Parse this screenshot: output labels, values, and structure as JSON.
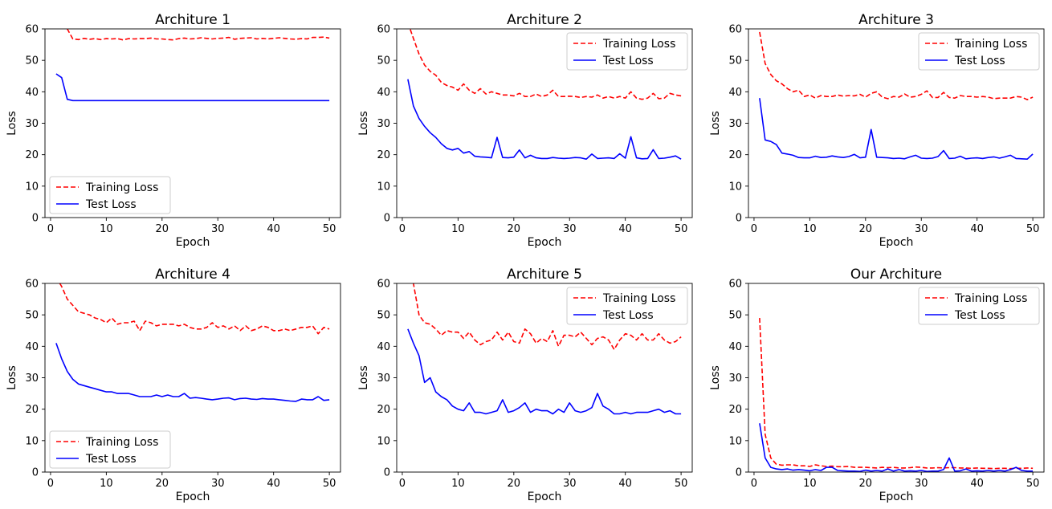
{
  "chart_data": [
    {
      "type": "line",
      "title": "Architure 1",
      "xlabel": "Epoch",
      "ylabel": "Loss",
      "xlim": [
        -1,
        52
      ],
      "ylim": [
        0,
        60
      ],
      "xticks": [
        "0",
        "10",
        "20",
        "30",
        "40",
        "50"
      ],
      "yticks": [
        "0",
        "10",
        "20",
        "30",
        "40",
        "50",
        "60"
      ],
      "legend_position": "lower-left",
      "x": [
        1,
        2,
        3,
        4,
        5,
        6,
        7,
        8,
        9,
        10,
        11,
        12,
        13,
        14,
        15,
        16,
        17,
        18,
        19,
        20,
        21,
        22,
        23,
        24,
        25,
        26,
        27,
        28,
        29,
        30,
        31,
        32,
        33,
        34,
        35,
        36,
        37,
        38,
        39,
        40,
        41,
        42,
        43,
        44,
        45,
        46,
        47,
        48,
        49,
        50
      ],
      "series": [
        {
          "name": "Training Loss",
          "style": "dashed",
          "color": "#ff0000",
          "values": [
            66,
            62,
            60,
            56.8,
            56.6,
            57,
            56.7,
            56.9,
            56.6,
            56.9,
            56.8,
            56.9,
            56.5,
            56.9,
            56.8,
            56.9,
            56.9,
            57.1,
            56.8,
            56.8,
            56.6,
            56.5,
            56.9,
            57.1,
            56.8,
            56.9,
            57.2,
            57.0,
            56.8,
            57.0,
            57.1,
            57.3,
            56.7,
            57.0,
            57.1,
            57.2,
            56.8,
            57.0,
            56.8,
            57.0,
            57.2,
            57.0,
            56.8,
            56.7,
            56.9,
            56.8,
            57.3,
            57.3,
            57.4,
            57.1
          ]
        },
        {
          "name": "Test Loss",
          "style": "solid",
          "color": "#0000ff",
          "values": [
            45.7,
            44.5,
            37.6,
            37.2,
            37.2,
            37.2,
            37.2,
            37.2,
            37.2,
            37.2,
            37.2,
            37.2,
            37.2,
            37.2,
            37.2,
            37.2,
            37.2,
            37.2,
            37.2,
            37.2,
            37.2,
            37.2,
            37.2,
            37.2,
            37.2,
            37.2,
            37.2,
            37.2,
            37.2,
            37.2,
            37.2,
            37.2,
            37.2,
            37.2,
            37.2,
            37.2,
            37.2,
            37.2,
            37.2,
            37.2,
            37.2,
            37.2,
            37.2,
            37.2,
            37.2,
            37.2,
            37.2,
            37.2,
            37.2,
            37.2
          ]
        }
      ]
    },
    {
      "type": "line",
      "title": "Architure 2",
      "xlabel": "Epoch",
      "ylabel": "Loss",
      "xlim": [
        -1,
        52
      ],
      "ylim": [
        0,
        60
      ],
      "xticks": [
        "0",
        "10",
        "20",
        "30",
        "40",
        "50"
      ],
      "yticks": [
        "0",
        "10",
        "20",
        "30",
        "40",
        "50",
        "60"
      ],
      "legend_position": "top-right",
      "x": [
        1,
        2,
        3,
        4,
        5,
        6,
        7,
        8,
        9,
        10,
        11,
        12,
        13,
        14,
        15,
        16,
        17,
        18,
        19,
        20,
        21,
        22,
        23,
        24,
        25,
        26,
        27,
        28,
        29,
        30,
        31,
        32,
        33,
        34,
        35,
        36,
        37,
        38,
        39,
        40,
        41,
        42,
        43,
        44,
        45,
        46,
        47,
        48,
        49,
        50
      ],
      "series": [
        {
          "name": "Training Loss",
          "style": "dashed",
          "color": "#ff0000",
          "values": [
            62,
            57,
            52,
            48.5,
            46.5,
            45.3,
            43,
            42,
            41.5,
            40.5,
            42.5,
            40.5,
            39.5,
            41,
            39.3,
            40,
            39.5,
            39,
            39,
            38.7,
            39.5,
            38.5,
            38.5,
            39.3,
            38.5,
            39,
            40.5,
            38.5,
            38.5,
            38.6,
            38.5,
            38.2,
            38.5,
            38.3,
            39,
            38,
            38.5,
            38,
            38.5,
            38,
            40,
            38,
            37.6,
            38,
            39.5,
            37.8,
            38,
            39.5,
            39,
            38.7
          ]
        },
        {
          "name": "Test Loss",
          "style": "solid",
          "color": "#0000ff",
          "values": [
            44,
            35.5,
            31.5,
            29,
            27,
            25.5,
            23.5,
            22,
            21.5,
            22,
            20.5,
            21,
            19.5,
            19.3,
            19.2,
            19,
            25.5,
            19.1,
            19,
            19.2,
            21.5,
            19,
            19.8,
            19,
            18.8,
            18.8,
            19.1,
            18.9,
            18.8,
            18.9,
            19.1,
            19,
            18.6,
            20.2,
            18.8,
            18.9,
            19,
            18.8,
            20.3,
            18.9,
            25.7,
            19,
            18.7,
            18.8,
            21.6,
            18.8,
            18.9,
            19.2,
            19.6,
            18.6
          ]
        }
      ]
    },
    {
      "type": "line",
      "title": "Architure 3",
      "xlabel": "Epoch",
      "ylabel": "Loss",
      "xlim": [
        -1,
        52
      ],
      "ylim": [
        0,
        60
      ],
      "xticks": [
        "0",
        "10",
        "20",
        "30",
        "40",
        "50"
      ],
      "yticks": [
        "0",
        "10",
        "20",
        "30",
        "40",
        "50",
        "60"
      ],
      "legend_position": "top-right",
      "x": [
        1,
        2,
        3,
        4,
        5,
        6,
        7,
        8,
        9,
        10,
        11,
        12,
        13,
        14,
        15,
        16,
        17,
        18,
        19,
        20,
        21,
        22,
        23,
        24,
        25,
        26,
        27,
        28,
        29,
        30,
        31,
        32,
        33,
        34,
        35,
        36,
        37,
        38,
        39,
        40,
        41,
        42,
        43,
        44,
        45,
        46,
        47,
        48,
        49,
        50
      ],
      "series": [
        {
          "name": "Training Loss",
          "style": "dashed",
          "color": "#ff0000",
          "values": [
            59,
            49,
            45.5,
            43.5,
            42.5,
            41,
            40,
            40.5,
            38.5,
            39,
            38,
            38.8,
            38.5,
            38.5,
            39,
            38.6,
            38.8,
            38.7,
            39.2,
            38.3,
            39.5,
            40,
            38.3,
            37.8,
            38.5,
            38.3,
            39.3,
            38.3,
            38.5,
            39.2,
            40.3,
            38.2,
            38.2,
            39.8,
            38.2,
            38,
            38.8,
            38.5,
            38.5,
            38.3,
            38.5,
            38.3,
            37.8,
            38,
            38,
            38,
            38.5,
            38.3,
            37.5,
            38.3
          ]
        },
        {
          "name": "Test Loss",
          "style": "solid",
          "color": "#0000ff",
          "values": [
            38,
            24.7,
            24.2,
            23.2,
            20.5,
            20.2,
            19.8,
            19.1,
            19,
            19,
            19.5,
            19.1,
            19.2,
            19.6,
            19.3,
            19.1,
            19.4,
            20.1,
            19,
            19.2,
            28,
            19.2,
            19.1,
            19,
            18.8,
            18.9,
            18.7,
            19.3,
            19.8,
            18.9,
            18.8,
            18.9,
            19.4,
            21.3,
            18.8,
            18.9,
            19.5,
            18.7,
            18.9,
            19,
            18.8,
            19.1,
            19.3,
            18.9,
            19.3,
            19.8,
            18.8,
            18.7,
            18.6,
            20.2
          ]
        }
      ]
    },
    {
      "type": "line",
      "title": "Architure 4",
      "xlabel": "Epoch",
      "ylabel": "Loss",
      "xlim": [
        -1,
        52
      ],
      "ylim": [
        0,
        60
      ],
      "xticks": [
        "0",
        "10",
        "20",
        "30",
        "40",
        "50"
      ],
      "yticks": [
        "0",
        "10",
        "20",
        "30",
        "40",
        "50",
        "60"
      ],
      "legend_position": "lower-left",
      "x": [
        1,
        2,
        3,
        4,
        5,
        6,
        7,
        8,
        9,
        10,
        11,
        12,
        13,
        14,
        15,
        16,
        17,
        18,
        19,
        20,
        21,
        22,
        23,
        24,
        25,
        26,
        27,
        28,
        29,
        30,
        31,
        32,
        33,
        34,
        35,
        36,
        37,
        38,
        39,
        40,
        41,
        42,
        43,
        44,
        45,
        46,
        47,
        48,
        49,
        50
      ],
      "series": [
        {
          "name": "Training Loss",
          "style": "dashed",
          "color": "#ff0000",
          "values": [
            62,
            59,
            55,
            53,
            51,
            50.5,
            50,
            49,
            48.5,
            47.5,
            49,
            47,
            47.5,
            47.5,
            48,
            45,
            48,
            47.5,
            46.5,
            47,
            47,
            47,
            46.5,
            47,
            46,
            45.5,
            45.5,
            46,
            47.5,
            46,
            46.5,
            45.5,
            46.5,
            45,
            46.5,
            45,
            45.5,
            46.5,
            46,
            45,
            45,
            45.5,
            45,
            45.5,
            46,
            46,
            46.5,
            44,
            46,
            45.5
          ]
        },
        {
          "name": "Test Loss",
          "style": "solid",
          "color": "#0000ff",
          "values": [
            41,
            36,
            32,
            29.5,
            28,
            27.5,
            27,
            26.5,
            26,
            25.5,
            25.5,
            25,
            25,
            25,
            24.5,
            24,
            24,
            24,
            24.5,
            24,
            24.5,
            24,
            24,
            25,
            23.5,
            23.7,
            23.5,
            23.2,
            23,
            23.2,
            23.5,
            23.6,
            23,
            23.4,
            23.5,
            23.2,
            23.1,
            23.4,
            23.2,
            23.2,
            23,
            22.8,
            22.6,
            22.5,
            23.2,
            23,
            23,
            24,
            22.8,
            23
          ]
        }
      ]
    },
    {
      "type": "line",
      "title": "Architure 5",
      "xlabel": "Epoch",
      "ylabel": "Loss",
      "xlim": [
        -1,
        52
      ],
      "ylim": [
        0,
        60
      ],
      "xticks": [
        "0",
        "10",
        "20",
        "30",
        "40",
        "50"
      ],
      "yticks": [
        "0",
        "10",
        "20",
        "30",
        "40",
        "50",
        "60"
      ],
      "legend_position": "top-right",
      "x": [
        1,
        2,
        3,
        4,
        5,
        6,
        7,
        8,
        9,
        10,
        11,
        12,
        13,
        14,
        15,
        16,
        17,
        18,
        19,
        20,
        21,
        22,
        23,
        24,
        25,
        26,
        27,
        28,
        29,
        30,
        31,
        32,
        33,
        34,
        35,
        36,
        37,
        38,
        39,
        40,
        41,
        42,
        43,
        44,
        45,
        46,
        47,
        48,
        49,
        50
      ],
      "series": [
        {
          "name": "Training Loss",
          "style": "dashed",
          "color": "#ff0000",
          "values": [
            62,
            60,
            50,
            47.5,
            47,
            45.5,
            43.5,
            45,
            44.5,
            44.5,
            42.5,
            44.5,
            42,
            40.5,
            41.5,
            42,
            44.5,
            42,
            44.5,
            41.5,
            41,
            45.5,
            44,
            41,
            42.5,
            41.5,
            45,
            40,
            43.5,
            43.5,
            43,
            44.5,
            42.5,
            40.5,
            42.5,
            43,
            42,
            39,
            42,
            44,
            43.5,
            42,
            44,
            42,
            42,
            44,
            42,
            41,
            41.5,
            43
          ]
        },
        {
          "name": "Test Loss",
          "style": "solid",
          "color": "#0000ff",
          "values": [
            45.5,
            41,
            37,
            28.5,
            30,
            25.5,
            24,
            23,
            21,
            20,
            19.5,
            22,
            19,
            19,
            18.5,
            19,
            19.5,
            23,
            19,
            19.5,
            20.5,
            22,
            19,
            20,
            19.5,
            19.5,
            18.5,
            20,
            19,
            22,
            19.5,
            19,
            19.5,
            20.5,
            25,
            21,
            20,
            18.5,
            18.5,
            19,
            18.5,
            19,
            19,
            19,
            19.5,
            20,
            19,
            19.5,
            18.5,
            18.5
          ]
        }
      ]
    },
    {
      "type": "line",
      "title": "Our Architure",
      "xlabel": "Epoch",
      "ylabel": "Loss",
      "xlim": [
        -1,
        52
      ],
      "ylim": [
        0,
        60
      ],
      "xticks": [
        "0",
        "10",
        "20",
        "30",
        "40",
        "50"
      ],
      "yticks": [
        "0",
        "10",
        "20",
        "30",
        "40",
        "50",
        "60"
      ],
      "legend_position": "top-right",
      "x": [
        1,
        2,
        3,
        4,
        5,
        6,
        7,
        8,
        9,
        10,
        11,
        12,
        13,
        14,
        15,
        16,
        17,
        18,
        19,
        20,
        21,
        22,
        23,
        24,
        25,
        26,
        27,
        28,
        29,
        30,
        31,
        32,
        33,
        34,
        35,
        36,
        37,
        38,
        39,
        40,
        41,
        42,
        43,
        44,
        45,
        46,
        47,
        48,
        49,
        50
      ],
      "series": [
        {
          "name": "Training Loss",
          "style": "dashed",
          "color": "#ff0000",
          "values": [
            49,
            12,
            4.5,
            2.5,
            2.2,
            2.3,
            2.3,
            2,
            2,
            1.8,
            2.3,
            2,
            1.8,
            1.9,
            1.7,
            1.7,
            1.8,
            1.5,
            1.5,
            1.5,
            1.4,
            1.3,
            1.5,
            1.4,
            1.5,
            1.3,
            1.3,
            1.4,
            1.6,
            1.5,
            1.3,
            1.3,
            1.4,
            1.3,
            1.4,
            1.4,
            1.3,
            1.3,
            1.2,
            1.3,
            1.2,
            1.2,
            1.1,
            1.2,
            1.2,
            1.1,
            1.2,
            1.2,
            1.3,
            1.2
          ]
        },
        {
          "name": "Test Loss",
          "style": "solid",
          "color": "#0000ff",
          "values": [
            15.5,
            4.5,
            1.5,
            1,
            0.8,
            1,
            0.6,
            0.8,
            0.6,
            0.4,
            0.8,
            0.5,
            1.5,
            1.5,
            0.5,
            0.4,
            0.3,
            0.3,
            0.2,
            0.6,
            0.3,
            0.5,
            0.3,
            1,
            0.3,
            0.8,
            0.3,
            0.4,
            0.3,
            0.5,
            0.2,
            0.3,
            0.3,
            0.8,
            4.5,
            0.3,
            0.4,
            1,
            0.3,
            0.4,
            0.3,
            0.5,
            0.3,
            0.5,
            0.3,
            0.8,
            1.5,
            0.5,
            0.3,
            0.3
          ]
        }
      ]
    }
  ]
}
